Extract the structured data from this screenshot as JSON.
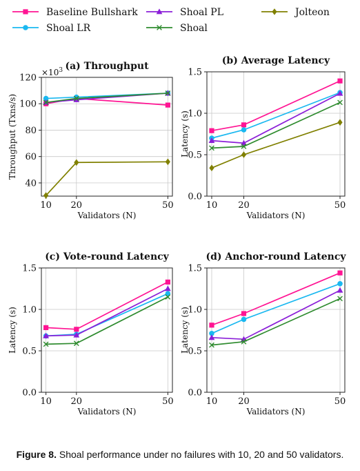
{
  "colors": {
    "Baseline Bullshark": "#ff1493",
    "Shoal LR": "#1ab8f0",
    "Shoal PL": "#8b1fd8",
    "Shoal": "#2e8b2e",
    "Jolteon": "#808000"
  },
  "markers": {
    "Baseline Bullshark": "square",
    "Shoal LR": "circle",
    "Shoal PL": "triangle",
    "Shoal": "x",
    "Jolteon": "diamond"
  },
  "legend": [
    "Baseline Bullshark",
    "Shoal LR",
    "Shoal PL",
    "Shoal",
    "Jolteon"
  ],
  "caption": {
    "label": "Figure 8.",
    "text": "Shoal performance under no failures with 10, 20 and 50 validators."
  },
  "chart_data": [
    {
      "type": "line",
      "title": "(a) Throughput",
      "xlabel": "Validators (N)",
      "ylabel": "Throughput (Txns/s)",
      "exponent_label": "×10",
      "exponent_power": "3",
      "x": [
        10,
        20,
        50
      ],
      "xlim": [
        8.5,
        51.5
      ],
      "ylim": [
        30,
        120
      ],
      "yticks": [
        40,
        60,
        80,
        100,
        120
      ],
      "ytick_labels": [
        "40",
        "60",
        "80",
        "100",
        "120"
      ],
      "series": [
        {
          "name": "Baseline Bullshark",
          "values": [
            100,
            104,
            99
          ]
        },
        {
          "name": "Shoal LR",
          "values": [
            104,
            105,
            108
          ]
        },
        {
          "name": "Shoal PL",
          "values": [
            101,
            103,
            108
          ]
        },
        {
          "name": "Shoal",
          "values": [
            101,
            104,
            108
          ]
        },
        {
          "name": "Jolteon",
          "values": [
            30.5,
            55.5,
            56
          ]
        }
      ]
    },
    {
      "type": "line",
      "title": "(b) Average Latency",
      "xlabel": "Validators (N)",
      "ylabel": "Latency (s)",
      "x": [
        10,
        20,
        50
      ],
      "xlim": [
        8.5,
        51.5
      ],
      "ylim": [
        0,
        1.5
      ],
      "yticks": [
        0,
        0.5,
        1.0,
        1.5
      ],
      "ytick_labels": [
        "0.0",
        "0.5",
        "1.0",
        "1.5"
      ],
      "series": [
        {
          "name": "Baseline Bullshark",
          "values": [
            0.79,
            0.86,
            1.39
          ]
        },
        {
          "name": "Shoal LR",
          "values": [
            0.7,
            0.8,
            1.25
          ]
        },
        {
          "name": "Shoal PL",
          "values": [
            0.67,
            0.64,
            1.24
          ]
        },
        {
          "name": "Shoal",
          "values": [
            0.58,
            0.6,
            1.13
          ]
        },
        {
          "name": "Jolteon",
          "values": [
            0.34,
            0.5,
            0.89
          ]
        }
      ]
    },
    {
      "type": "line",
      "title": "(c) Vote-round Latency",
      "xlabel": "Validators (N)",
      "ylabel": "Latency (s)",
      "x": [
        10,
        20,
        50
      ],
      "xlim": [
        8.5,
        51.5
      ],
      "ylim": [
        0,
        1.5
      ],
      "yticks": [
        0,
        0.5,
        1.0,
        1.5
      ],
      "ytick_labels": [
        "0.0",
        "0.5",
        "1.0",
        "1.5"
      ],
      "series": [
        {
          "name": "Baseline Bullshark",
          "values": [
            0.78,
            0.76,
            1.33
          ]
        },
        {
          "name": "Shoal LR",
          "values": [
            0.68,
            0.7,
            1.19
          ]
        },
        {
          "name": "Shoal PL",
          "values": [
            0.68,
            0.69,
            1.25
          ]
        },
        {
          "name": "Shoal",
          "values": [
            0.58,
            0.59,
            1.15
          ]
        }
      ]
    },
    {
      "type": "line",
      "title": "(d) Anchor-round Latency",
      "xlabel": "Validators (N)",
      "ylabel": "Latency (s)",
      "x": [
        10,
        20,
        50
      ],
      "xlim": [
        8.5,
        51.5
      ],
      "ylim": [
        0,
        1.5
      ],
      "yticks": [
        0,
        0.5,
        1.0,
        1.5
      ],
      "ytick_labels": [
        "0.0",
        "0.5",
        "1.0",
        "1.5"
      ],
      "series": [
        {
          "name": "Baseline Bullshark",
          "values": [
            0.81,
            0.95,
            1.44
          ]
        },
        {
          "name": "Shoal LR",
          "values": [
            0.71,
            0.88,
            1.31
          ]
        },
        {
          "name": "Shoal PL",
          "values": [
            0.66,
            0.64,
            1.23
          ]
        },
        {
          "name": "Shoal",
          "values": [
            0.57,
            0.61,
            1.13
          ]
        }
      ]
    }
  ]
}
